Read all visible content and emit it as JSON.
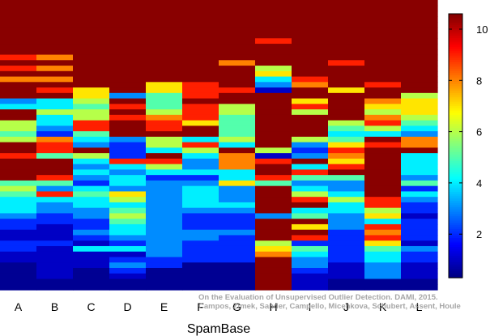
{
  "chart_data": {
    "type": "heatmap",
    "title": "",
    "xlabel": "SpamBase",
    "ylabel": "",
    "categories": [
      "A",
      "B",
      "C",
      "D",
      "E",
      "F",
      "G",
      "H",
      "I",
      "J",
      "K",
      "L"
    ],
    "colorbar": {
      "min": 0.3,
      "max": 10.6,
      "ticks": [
        2,
        4,
        6,
        8,
        10
      ],
      "colormap": "jet"
    },
    "columns": [
      [
        10.5,
        10.5,
        10.5,
        10.5,
        10.5,
        10.5,
        10.5,
        10.5,
        10.5,
        10.5,
        9,
        10.5,
        9,
        10.5,
        8,
        10.5,
        10.5,
        10.5,
        3,
        4,
        10.5,
        10.5,
        6,
        6,
        5,
        6,
        10.5,
        10.5,
        9,
        10.5,
        10.5,
        10.5,
        10.5,
        5,
        6,
        5,
        4,
        4,
        4,
        3,
        2,
        2,
        1,
        1,
        2,
        2,
        1,
        1,
        0.5,
        0.5,
        0.5,
        0.5,
        0.5
      ],
      [
        10.5,
        10.5,
        10.5,
        10.5,
        10.5,
        10.5,
        10.5,
        10.5,
        10.5,
        10.5,
        8,
        10.5,
        8,
        10.5,
        8,
        10.5,
        9,
        10.5,
        4,
        4,
        6,
        4,
        4,
        3,
        2,
        8,
        9,
        9,
        5,
        10.5,
        10.5,
        10.5,
        9,
        5,
        3,
        9,
        4,
        3,
        3,
        2,
        2,
        1,
        1,
        1,
        2,
        1,
        1,
        1,
        1,
        1,
        1,
        0.5,
        0.5
      ],
      [
        10.5,
        10.5,
        10.5,
        10.5,
        10.5,
        10.5,
        10.5,
        10.5,
        10.5,
        10.5,
        10.5,
        10.5,
        10.5,
        10.5,
        10.5,
        10.5,
        7,
        7,
        6,
        5,
        6,
        6,
        9,
        9,
        5,
        4,
        3,
        10.5,
        6,
        4,
        3,
        4,
        3,
        2,
        4,
        5,
        4,
        4,
        3,
        3,
        2,
        2,
        3,
        2,
        1,
        4,
        1,
        1,
        1,
        0.5,
        0.5,
        0.5,
        0.5
      ],
      [
        10.5,
        10.5,
        10.5,
        10.5,
        10.5,
        10.5,
        10.5,
        10.5,
        10.5,
        10.5,
        10.5,
        10.5,
        10.5,
        10.5,
        10.5,
        10.5,
        10.5,
        3,
        10.5,
        9,
        10.5,
        9,
        10.5,
        10.5,
        10.5,
        3,
        2,
        2,
        2,
        9,
        4,
        3,
        4,
        4,
        3,
        7,
        6,
        4,
        5,
        6,
        5,
        4,
        4,
        3,
        2,
        4,
        1,
        2,
        3,
        2,
        1,
        0.5,
        0.5
      ],
      [
        10.5,
        10.5,
        10.5,
        10.5,
        10.5,
        10.5,
        10.5,
        10.5,
        10.5,
        10.5,
        10.5,
        10.5,
        10.5,
        10.5,
        10.5,
        7,
        7,
        5,
        5,
        5,
        6,
        8,
        9,
        9,
        10.5,
        6,
        6,
        4,
        10.5,
        9,
        6,
        4,
        2,
        3,
        3,
        3,
        3,
        3,
        3,
        3,
        3,
        3,
        3,
        3,
        3,
        3,
        3,
        2,
        2,
        0.5,
        0.5,
        0.5,
        0.5
      ],
      [
        10.5,
        10.5,
        10.5,
        10.5,
        10.5,
        10.5,
        10.5,
        10.5,
        10.5,
        10.5,
        10.5,
        10.5,
        10.5,
        10.5,
        10.5,
        9,
        9,
        9,
        10.5,
        9,
        9,
        9,
        7,
        10.5,
        10.5,
        4,
        9,
        6,
        4,
        3,
        3,
        4,
        2,
        3,
        4,
        4,
        4,
        4,
        3,
        2,
        2,
        2,
        3,
        3,
        2,
        2,
        2,
        2,
        0.5,
        0.5,
        0.5,
        0.5,
        0.5
      ],
      [
        10.5,
        10.5,
        10.5,
        10.5,
        10.5,
        10.5,
        10.5,
        10.5,
        10.5,
        10.5,
        10.5,
        8,
        10.5,
        10.5,
        10.5,
        10.5,
        9,
        10.5,
        10.5,
        6,
        6,
        5,
        5,
        5,
        5,
        6,
        4,
        10.5,
        8,
        8,
        8,
        4,
        4,
        7,
        3,
        3,
        3,
        4,
        3,
        2,
        2,
        2,
        3,
        2,
        2,
        2,
        2,
        2,
        0.5,
        0.5,
        0.5,
        0.5,
        0.5
      ],
      [
        10.5,
        10.5,
        10.5,
        10.5,
        10.5,
        10.5,
        10.5,
        9,
        10.5,
        10.5,
        10.5,
        10.5,
        6,
        7,
        4,
        3,
        1,
        10.5,
        10.5,
        10.5,
        10.5,
        10.5,
        10.5,
        10.5,
        10.5,
        10.5,
        10.5,
        6,
        1,
        9,
        10.5,
        10.5,
        9,
        5,
        10.5,
        10.5,
        10.5,
        10.5,
        10.5,
        3,
        10.5,
        10.5,
        10.5,
        10.5,
        6,
        7,
        8,
        10.5,
        10.5,
        10.5,
        10.5,
        10.5,
        10.5
      ],
      [
        10.5,
        10.5,
        10.5,
        10.5,
        10.5,
        10.5,
        10.5,
        10.5,
        10.5,
        10.5,
        10.5,
        10.5,
        10.5,
        10.5,
        9,
        8,
        10.5,
        10.5,
        7,
        9,
        6,
        10.5,
        10.5,
        10.5,
        10.5,
        6,
        3,
        2,
        3,
        10.5,
        4,
        9,
        5,
        3,
        4,
        6,
        9,
        10.5,
        4,
        5,
        10.5,
        7,
        10.5,
        9,
        2,
        5,
        4,
        3,
        3,
        2,
        1,
        1,
        1
      ],
      [
        10.5,
        10.5,
        10.5,
        10.5,
        10.5,
        10.5,
        10.5,
        10.5,
        10.5,
        10.5,
        10.5,
        9,
        10.5,
        10.5,
        10.5,
        10.5,
        7,
        10.5,
        10.5,
        10.5,
        10.5,
        10.5,
        6,
        5,
        4,
        5,
        7,
        9,
        8,
        7,
        9,
        10.5,
        5,
        3,
        3,
        4,
        6,
        4,
        4,
        3,
        3,
        3,
        2,
        2,
        2,
        2,
        2,
        2,
        1,
        1,
        1,
        0.5,
        0.5
      ],
      [
        10.5,
        10.5,
        10.5,
        10.5,
        10.5,
        10.5,
        10.5,
        10.5,
        10.5,
        10.5,
        10.5,
        10.5,
        10.5,
        10.5,
        10.5,
        9,
        10.5,
        10.5,
        8,
        7,
        6,
        8,
        9,
        6,
        4,
        10.5,
        9,
        10.5,
        10.5,
        10.5,
        10.5,
        10.5,
        10.5,
        10.5,
        10.5,
        10.5,
        9,
        9,
        6,
        7,
        4,
        9,
        8,
        9,
        7,
        5,
        4,
        4,
        3,
        3,
        3,
        0.5,
        0.5
      ],
      [
        10.5,
        10.5,
        10.5,
        10.5,
        10.5,
        10.5,
        10.5,
        10.5,
        10.5,
        10.5,
        10.5,
        10.5,
        10.5,
        10.5,
        10.5,
        10.5,
        10.5,
        6,
        7,
        7,
        7,
        6,
        5,
        4,
        3,
        8,
        8,
        10.5,
        4,
        4,
        4,
        4,
        3,
        5,
        2,
        4,
        3,
        2,
        2,
        1,
        2,
        2,
        2,
        2,
        1,
        3,
        2,
        2,
        1,
        1,
        1,
        0.5,
        0.5
      ]
    ]
  },
  "watermark": {
    "line1": "On the Evaluation of Unsupervised Outlier Detection. DAMI, 2015.",
    "line2": "Campos, Zimek, Sander, Campello, Micenkova, Schubert, Assent, Houle"
  }
}
